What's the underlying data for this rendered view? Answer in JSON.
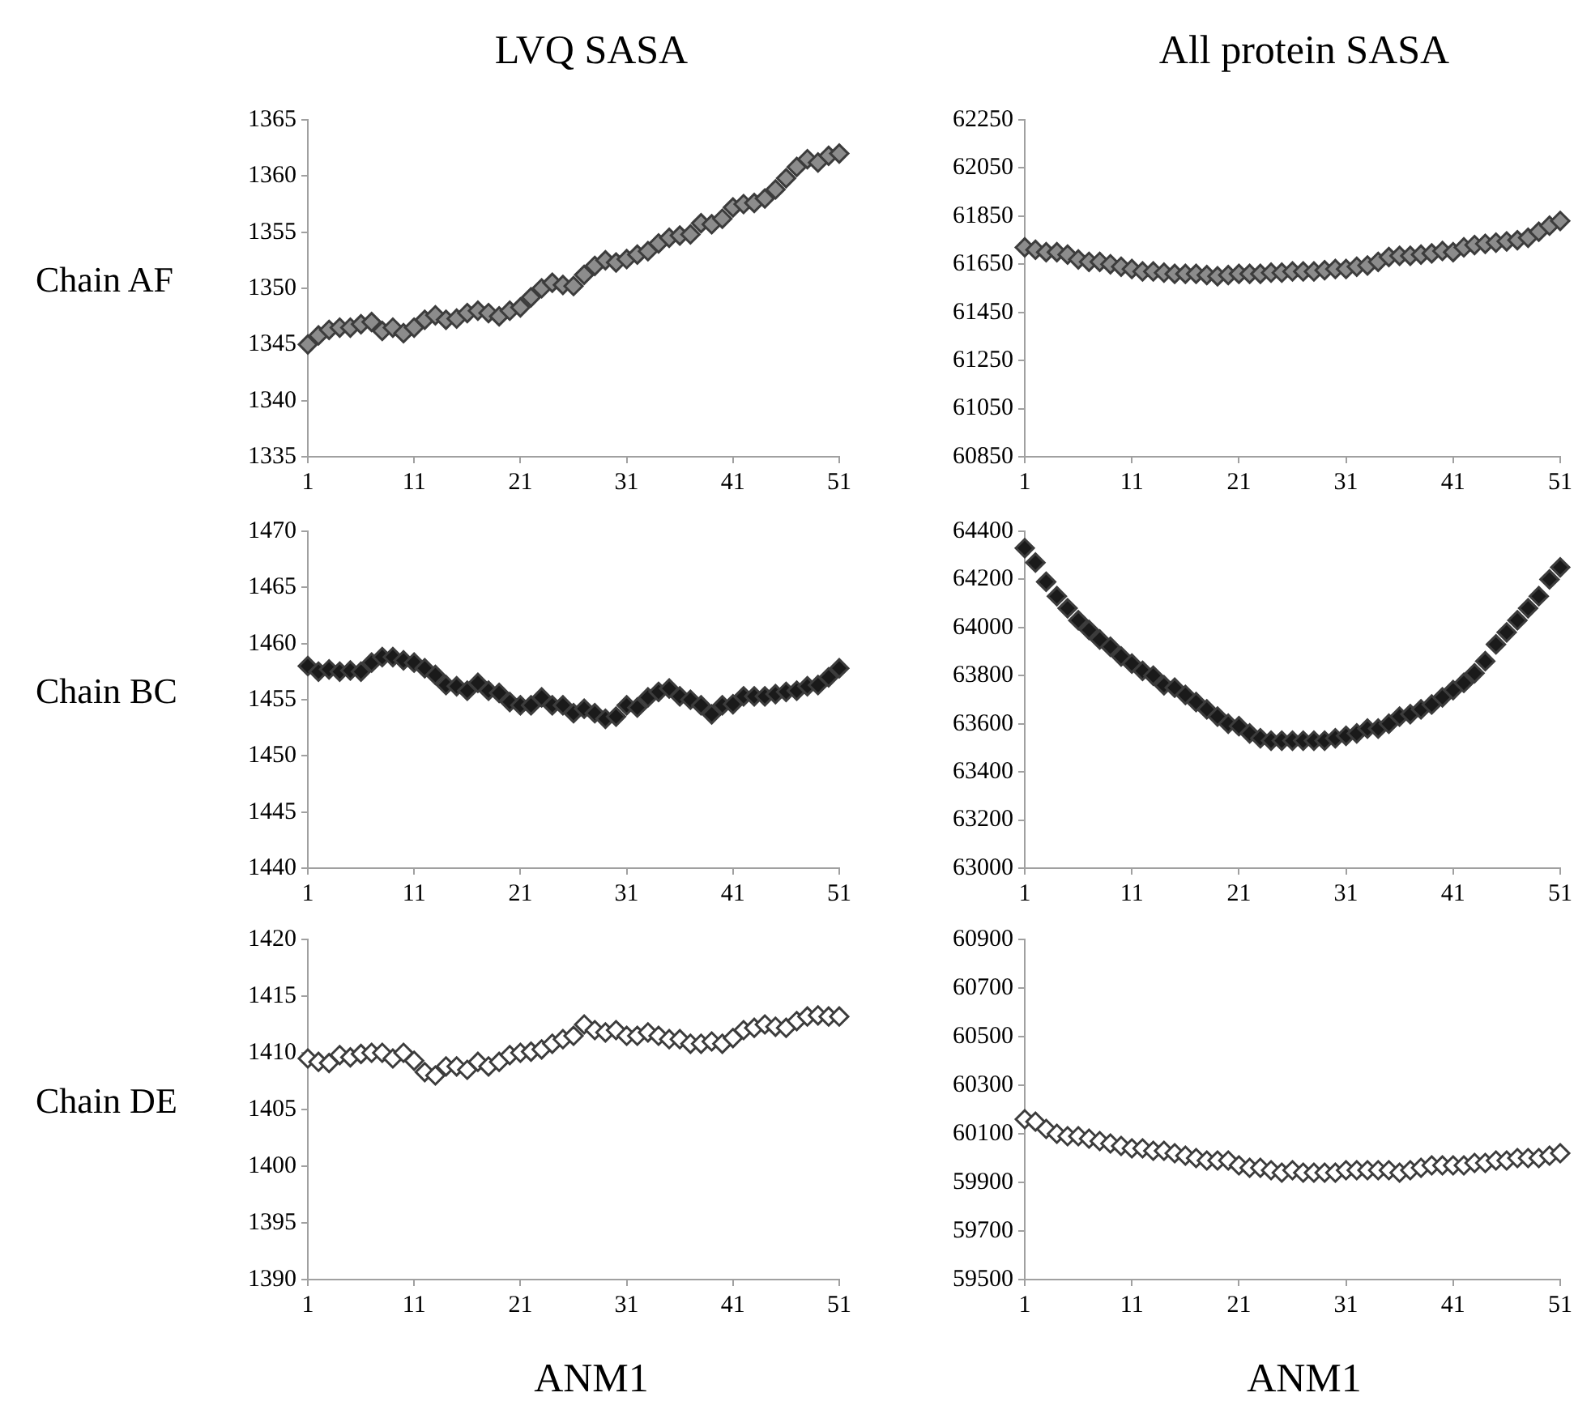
{
  "chart_data": [
    {
      "type": "scatter",
      "title": "LVQ SASA",
      "ylabel": "Chain AF",
      "marker": "diamond",
      "legend": false,
      "grid": false,
      "xlim": [
        1,
        51
      ],
      "xticks": [
        1,
        11,
        21,
        31,
        41,
        51
      ],
      "ylim": [
        1335,
        1365
      ],
      "yticks": [
        1335,
        1340,
        1345,
        1350,
        1355,
        1360,
        1365
      ],
      "series": [
        {
          "color": "#8c8c8c",
          "x": [
            1,
            2,
            3,
            4,
            5,
            6,
            7,
            8,
            9,
            10,
            11,
            12,
            13,
            14,
            15,
            16,
            17,
            18,
            19,
            20,
            21,
            22,
            23,
            24,
            25,
            26,
            27,
            28,
            29,
            30,
            31,
            32,
            33,
            34,
            35,
            36,
            37,
            38,
            39,
            40,
            41,
            42,
            43,
            44,
            45,
            46,
            47,
            48,
            49,
            50,
            51
          ],
          "values": [
            1345,
            1345.8,
            1346.3,
            1346.5,
            1346.5,
            1346.8,
            1347,
            1346.2,
            1346.5,
            1346,
            1346.5,
            1347.2,
            1347.6,
            1347.2,
            1347.3,
            1347.8,
            1348,
            1347.8,
            1347.5,
            1348,
            1348.3,
            1349.2,
            1350,
            1350.5,
            1350.3,
            1350.2,
            1351.2,
            1352,
            1352.5,
            1352.3,
            1352.6,
            1353,
            1353.3,
            1354,
            1354.5,
            1354.7,
            1354.8,
            1355.8,
            1355.7,
            1356.2,
            1357.2,
            1357.5,
            1357.6,
            1358,
            1358.8,
            1359.8,
            1360.8,
            1361.5,
            1361.2,
            1361.8,
            1362
          ]
        }
      ]
    },
    {
      "type": "scatter",
      "title": "All protein SASA",
      "marker": "diamond",
      "legend": false,
      "grid": false,
      "xlim": [
        1,
        51
      ],
      "xticks": [
        1,
        11,
        21,
        31,
        41,
        51
      ],
      "ylim": [
        60850,
        62250
      ],
      "yticks": [
        60850,
        61050,
        61250,
        61450,
        61650,
        61850,
        62050,
        62250
      ],
      "series": [
        {
          "color": "#8c8c8c",
          "x": [
            1,
            2,
            3,
            4,
            5,
            6,
            7,
            8,
            9,
            10,
            11,
            12,
            13,
            14,
            15,
            16,
            17,
            18,
            19,
            20,
            21,
            22,
            23,
            24,
            25,
            26,
            27,
            28,
            29,
            30,
            31,
            32,
            33,
            34,
            35,
            36,
            37,
            38,
            39,
            40,
            41,
            42,
            43,
            44,
            45,
            46,
            47,
            48,
            49,
            50,
            51
          ],
          "values": [
            61720,
            61710,
            61700,
            61700,
            61690,
            61670,
            61660,
            61660,
            61650,
            61640,
            61630,
            61620,
            61620,
            61615,
            61610,
            61610,
            61610,
            61605,
            61600,
            61605,
            61610,
            61610,
            61610,
            61615,
            61615,
            61620,
            61620,
            61620,
            61625,
            61630,
            61630,
            61640,
            61645,
            61660,
            61680,
            61685,
            61685,
            61690,
            61695,
            61705,
            61700,
            61720,
            61730,
            61735,
            61740,
            61745,
            61750,
            61760,
            61785,
            61810,
            61830
          ]
        }
      ]
    },
    {
      "type": "scatter",
      "ylabel": "Chain BC",
      "marker": "diamond",
      "legend": false,
      "grid": false,
      "xlim": [
        1,
        51
      ],
      "xticks": [
        1,
        11,
        21,
        31,
        41,
        51
      ],
      "ylim": [
        1440,
        1470
      ],
      "yticks": [
        1440,
        1445,
        1450,
        1455,
        1460,
        1465,
        1470
      ],
      "series": [
        {
          "color": "#1a1a1a",
          "x": [
            1,
            2,
            3,
            4,
            5,
            6,
            7,
            8,
            9,
            10,
            11,
            12,
            13,
            14,
            15,
            16,
            17,
            18,
            19,
            20,
            21,
            22,
            23,
            24,
            25,
            26,
            27,
            28,
            29,
            30,
            31,
            32,
            33,
            34,
            35,
            36,
            37,
            38,
            39,
            40,
            41,
            42,
            43,
            44,
            45,
            46,
            47,
            48,
            49,
            50,
            51
          ],
          "values": [
            1458,
            1457.5,
            1457.7,
            1457.5,
            1457.6,
            1457.5,
            1458.3,
            1458.8,
            1458.8,
            1458.5,
            1458.3,
            1457.8,
            1457.2,
            1456.3,
            1456.2,
            1455.8,
            1456.5,
            1455.8,
            1455.6,
            1454.8,
            1454.5,
            1454.5,
            1455.2,
            1454.5,
            1454.5,
            1453.8,
            1454.2,
            1453.8,
            1453.3,
            1453.5,
            1454.5,
            1454.3,
            1455.2,
            1455.7,
            1456,
            1455.3,
            1455,
            1454.5,
            1453.7,
            1454.5,
            1454.6,
            1455.3,
            1455.3,
            1455.3,
            1455.5,
            1455.7,
            1455.8,
            1456.2,
            1456.3,
            1457,
            1457.8
          ]
        }
      ]
    },
    {
      "type": "scatter",
      "marker": "diamond",
      "legend": false,
      "grid": false,
      "xlim": [
        1,
        51
      ],
      "xticks": [
        1,
        11,
        21,
        31,
        41,
        51
      ],
      "ylim": [
        63000,
        64400
      ],
      "yticks": [
        63000,
        63200,
        63400,
        63600,
        63800,
        64000,
        64200,
        64400
      ],
      "series": [
        {
          "color": "#1a1a1a",
          "x": [
            1,
            2,
            3,
            4,
            5,
            6,
            7,
            8,
            9,
            10,
            11,
            12,
            13,
            14,
            15,
            16,
            17,
            18,
            19,
            20,
            21,
            22,
            23,
            24,
            25,
            26,
            27,
            28,
            29,
            30,
            31,
            32,
            33,
            34,
            35,
            36,
            37,
            38,
            39,
            40,
            41,
            42,
            43,
            44,
            45,
            46,
            47,
            48,
            49,
            50,
            51
          ],
          "values": [
            64330,
            64270,
            64190,
            64130,
            64080,
            64030,
            63990,
            63950,
            63920,
            63880,
            63850,
            63820,
            63800,
            63760,
            63750,
            63720,
            63690,
            63660,
            63630,
            63600,
            63590,
            63560,
            63540,
            63530,
            63530,
            63530,
            63530,
            63530,
            63530,
            63540,
            63550,
            63560,
            63580,
            63580,
            63600,
            63630,
            63640,
            63660,
            63680,
            63710,
            63740,
            63770,
            63810,
            63860,
            63930,
            63980,
            64030,
            64080,
            64130,
            64200,
            64250
          ]
        }
      ]
    },
    {
      "type": "scatter",
      "ylabel": "Chain DE",
      "xlabel": "ANM1",
      "marker": "diamond",
      "legend": false,
      "grid": false,
      "xlim": [
        1,
        51
      ],
      "xticks": [
        1,
        11,
        21,
        31,
        41,
        51
      ],
      "ylim": [
        1390,
        1420
      ],
      "yticks": [
        1390,
        1395,
        1400,
        1405,
        1410,
        1415,
        1420
      ],
      "series": [
        {
          "color": "#ffffff",
          "x": [
            1,
            2,
            3,
            4,
            5,
            6,
            7,
            8,
            9,
            10,
            11,
            12,
            13,
            14,
            15,
            16,
            17,
            18,
            19,
            20,
            21,
            22,
            23,
            24,
            25,
            26,
            27,
            28,
            29,
            30,
            31,
            32,
            33,
            34,
            35,
            36,
            37,
            38,
            39,
            40,
            41,
            42,
            43,
            44,
            45,
            46,
            47,
            48,
            49,
            50,
            51
          ],
          "values": [
            1409.5,
            1409.2,
            1409.1,
            1409.8,
            1409.6,
            1409.9,
            1410,
            1410,
            1409.5,
            1410,
            1409.3,
            1408.3,
            1408,
            1408.8,
            1408.8,
            1408.5,
            1409.2,
            1408.8,
            1409.2,
            1409.8,
            1410,
            1410.1,
            1410.3,
            1410.8,
            1411.2,
            1411.5,
            1412.5,
            1412,
            1411.8,
            1412,
            1411.5,
            1411.5,
            1411.8,
            1411.5,
            1411.2,
            1411.2,
            1410.8,
            1410.8,
            1411,
            1410.8,
            1411.3,
            1412,
            1412.2,
            1412.5,
            1412.3,
            1412.2,
            1412.8,
            1413.2,
            1413.3,
            1413.2,
            1413.2
          ]
        }
      ]
    },
    {
      "type": "scatter",
      "xlabel": "ANM1",
      "marker": "diamond",
      "legend": false,
      "grid": false,
      "xlim": [
        1,
        51
      ],
      "xticks": [
        1,
        11,
        21,
        31,
        41,
        51
      ],
      "ylim": [
        59500,
        60900
      ],
      "yticks": [
        59500,
        59700,
        59900,
        60100,
        60300,
        60500,
        60700,
        60900
      ],
      "series": [
        {
          "color": "#ffffff",
          "x": [
            1,
            2,
            3,
            4,
            5,
            6,
            7,
            8,
            9,
            10,
            11,
            12,
            13,
            14,
            15,
            16,
            17,
            18,
            19,
            20,
            21,
            22,
            23,
            24,
            25,
            26,
            27,
            28,
            29,
            30,
            31,
            32,
            33,
            34,
            35,
            36,
            37,
            38,
            39,
            40,
            41,
            42,
            43,
            44,
            45,
            46,
            47,
            48,
            49,
            50,
            51
          ],
          "values": [
            60160,
            60150,
            60120,
            60100,
            60090,
            60090,
            60080,
            60070,
            60060,
            60050,
            60040,
            60040,
            60030,
            60030,
            60020,
            60010,
            60000,
            59990,
            59990,
            59990,
            59970,
            59960,
            59960,
            59950,
            59940,
            59950,
            59940,
            59940,
            59940,
            59940,
            59950,
            59950,
            59950,
            59950,
            59950,
            59940,
            59950,
            59960,
            59970,
            59970,
            59970,
            59970,
            59980,
            59980,
            59990,
            59990,
            60000,
            60000,
            60000,
            60010,
            60020
          ]
        }
      ]
    }
  ]
}
